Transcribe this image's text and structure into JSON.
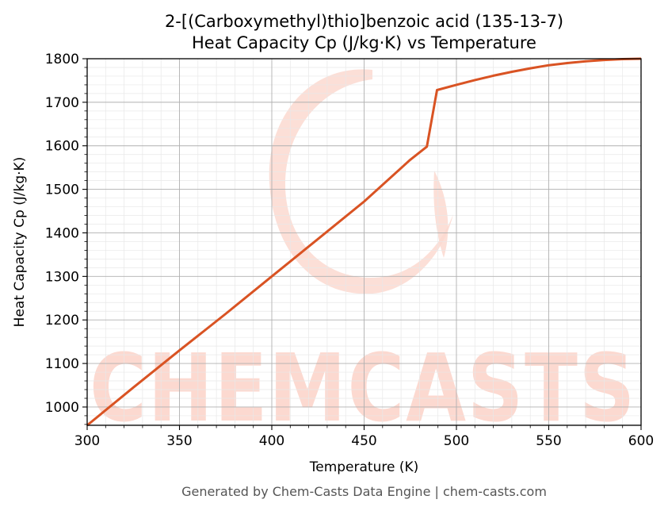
{
  "chart_data": {
    "type": "line",
    "title_line1": "2-[(Carboxymethyl)thio]benzoic acid (135-13-7)",
    "title_line2": "Heat Capacity Cp (J/kg·K) vs Temperature",
    "xlabel": "Temperature (K)",
    "ylabel": "Heat Capacity Cp (J/kg·K)",
    "xlim": [
      300,
      600
    ],
    "ylim": [
      958,
      1800
    ],
    "x_ticks": [
      300,
      350,
      400,
      450,
      500,
      550,
      600
    ],
    "y_ticks": [
      1000,
      1100,
      1200,
      1300,
      1400,
      1500,
      1600,
      1700,
      1800
    ],
    "grid": true,
    "series": [
      {
        "color": "#d95323",
        "x": [
          300,
          325,
          350,
          375,
          400,
          425,
          450,
          475,
          484,
          489.5,
          500,
          510,
          520,
          530,
          540,
          550,
          560,
          570,
          580,
          590,
          600
        ],
        "y": [
          958,
          1045,
          1130,
          1214,
          1300,
          1386,
          1472,
          1568,
          1598,
          1728,
          1740,
          1751,
          1761,
          1770,
          1778,
          1785,
          1790,
          1794,
          1797,
          1799,
          1800
        ]
      }
    ]
  },
  "watermark": {
    "text": "CHEMCASTS",
    "color": "#fcd9d0"
  },
  "footer": "Generated by Chem-Casts Data Engine | chem-casts.com"
}
